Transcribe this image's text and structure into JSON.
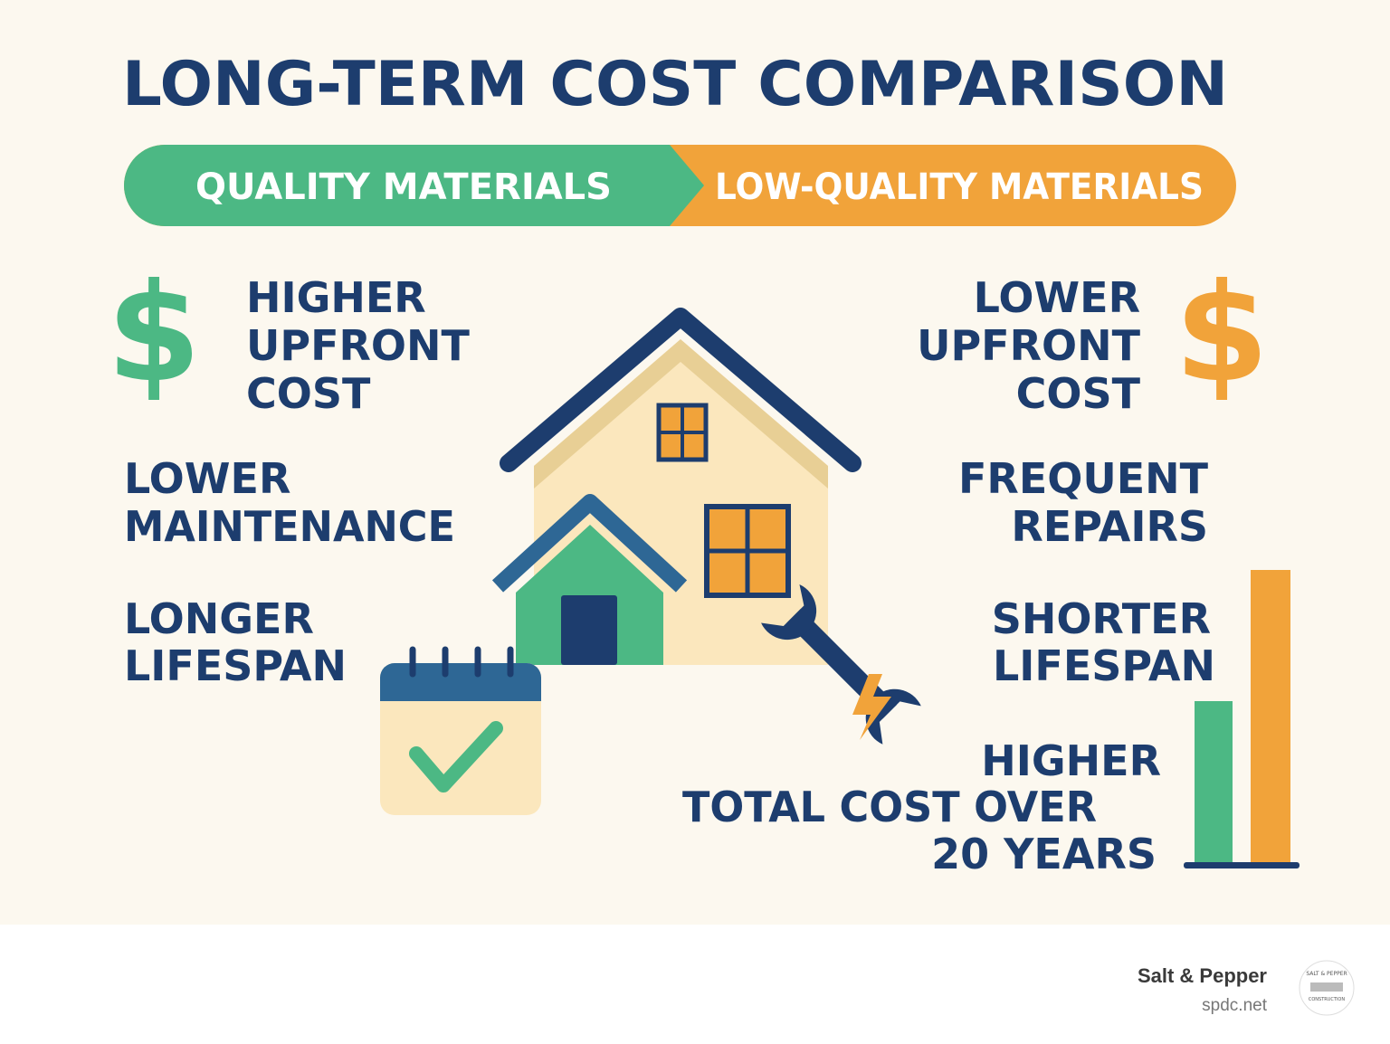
{
  "title": "LONG-TERM COST COMPARISON",
  "tabs": {
    "left": "QUALITY MATERIALS",
    "right": "LOW-QUALITY MATERIALS"
  },
  "left_items": [
    {
      "icon": "$",
      "lines": [
        "HIGHER",
        "UPFRONT",
        "COST"
      ]
    },
    {
      "lines": [
        "LOWER",
        "MAINTENANCE"
      ]
    },
    {
      "lines": [
        "LONGER",
        "LIFESPAN"
      ]
    }
  ],
  "right_items": [
    {
      "icon": "$",
      "lines": [
        "LOWER",
        "UPFRONT",
        "COST"
      ]
    },
    {
      "lines": [
        "FREQUENT",
        "REPAIRS"
      ]
    },
    {
      "lines": [
        "SHORTER",
        "LIFESPAN"
      ]
    },
    {
      "lines": [
        "HIGHER",
        "TOTAL COST OVER",
        "20 YEARS"
      ]
    }
  ],
  "footer": {
    "brand": "Salt & Pepper",
    "url": "spdc.net",
    "logo_top": "SALT & PEPPER",
    "logo_bottom": "CONSTRUCTION"
  }
}
